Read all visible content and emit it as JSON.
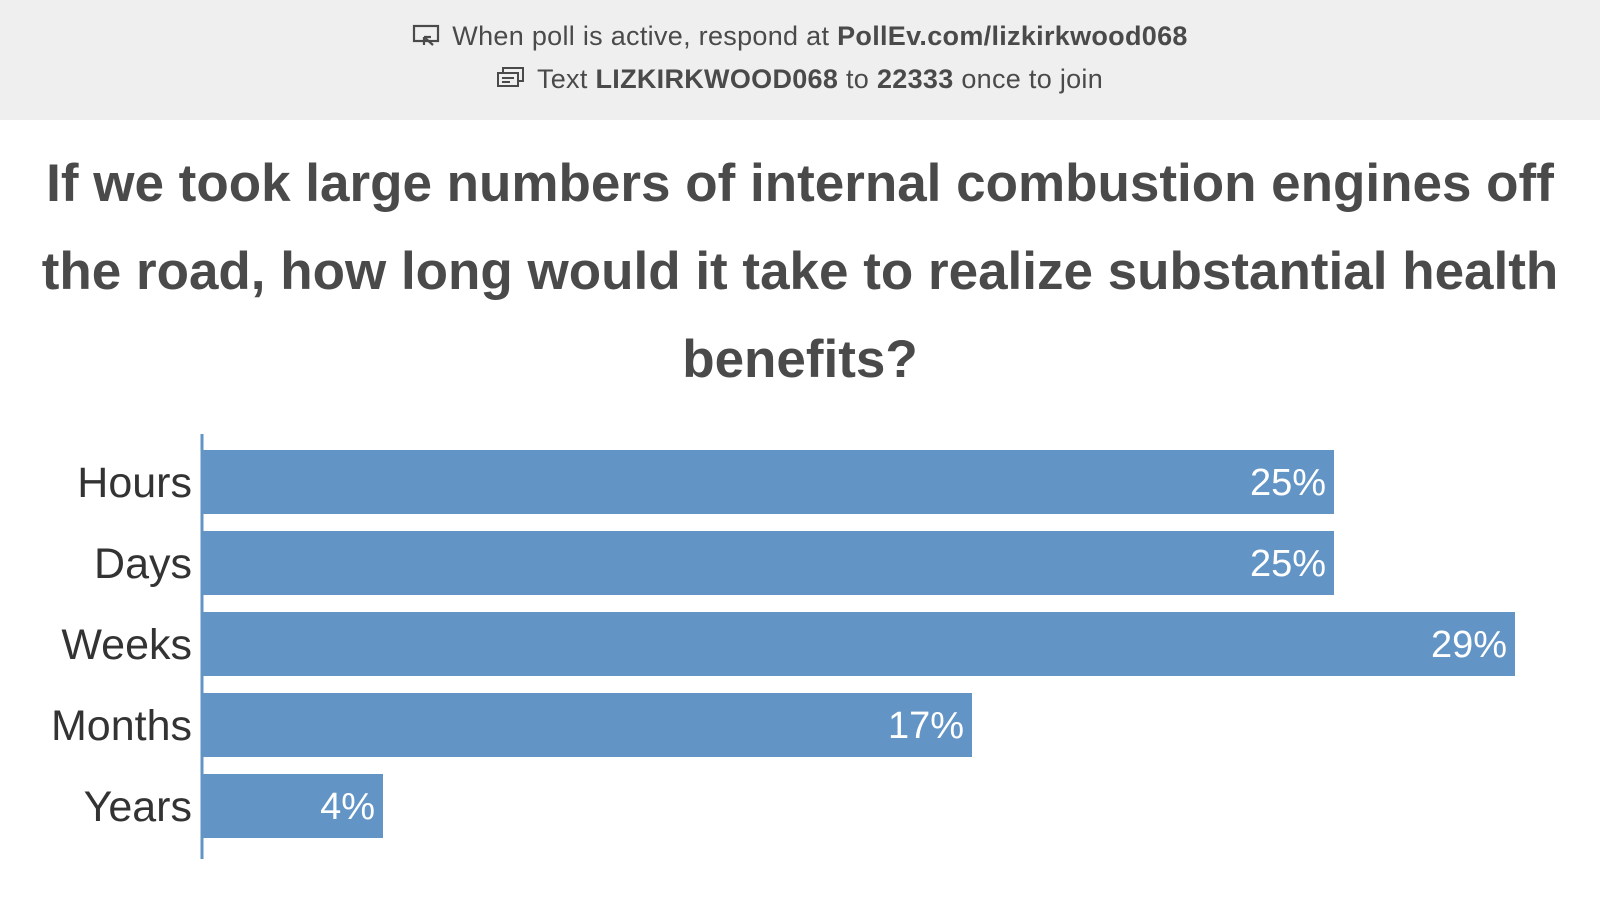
{
  "banner": {
    "respond_prefix": "When poll is active, respond at",
    "respond_url": "PollEv.com/lizkirkwood068",
    "text_prefix": "Text",
    "text_code": "LIZKIRKWOOD068",
    "text_to": "to",
    "text_number": "22333",
    "text_suffix": "once to join",
    "respond_icon": "presentation-screen-icon",
    "text_icon": "sms-message-icon"
  },
  "question": "If we took large numbers of internal combustion engines off the road, how long would it take to realize substantial health benefits?",
  "colors": {
    "bar": "#6294c6",
    "axis": "#6294c6",
    "banner_bg": "#efefef",
    "text": "#4a4a4a"
  },
  "chart_data": {
    "type": "bar",
    "orientation": "horizontal",
    "categories": [
      "Hours",
      "Days",
      "Weeks",
      "Months",
      "Years"
    ],
    "values": [
      25,
      25,
      29,
      17,
      4
    ],
    "value_labels": [
      "25%",
      "25%",
      "29%",
      "17%",
      "4%"
    ],
    "xlim": [
      0,
      29
    ],
    "grid": false
  }
}
